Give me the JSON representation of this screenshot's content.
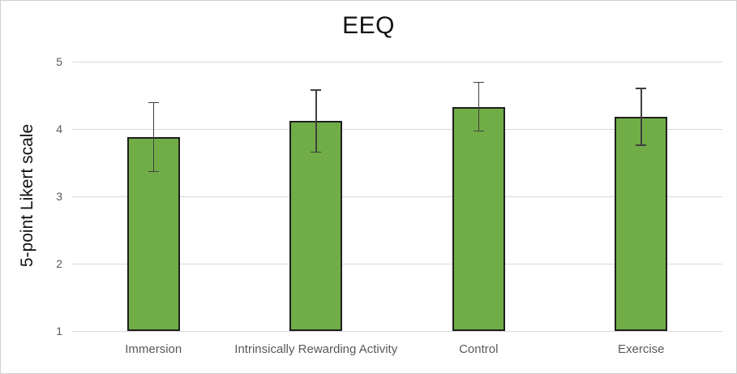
{
  "chart_data": {
    "type": "bar",
    "title": "EEQ",
    "ylabel": "5-point Likert scale",
    "xlabel": "",
    "categories": [
      "Immersion",
      "Intrinsically Rewarding Activity",
      "Control",
      "Exercise"
    ],
    "values": [
      3.88,
      4.12,
      4.33,
      4.18
    ],
    "error_bars": [
      0.52,
      0.47,
      0.37,
      0.43
    ],
    "ylim": [
      1,
      5
    ],
    "yticks": [
      1,
      2,
      3,
      4,
      5
    ],
    "grid": "horizontal",
    "legend": "none",
    "colors": {
      "bar_fill": "#70ad47",
      "bar_border": "#1f1f1f",
      "error_bar": "#404040",
      "gridline": "#d9d9d9",
      "axis_text": "#595959",
      "title_text": "#111111",
      "canvas_border": "#d0d0d0"
    }
  }
}
